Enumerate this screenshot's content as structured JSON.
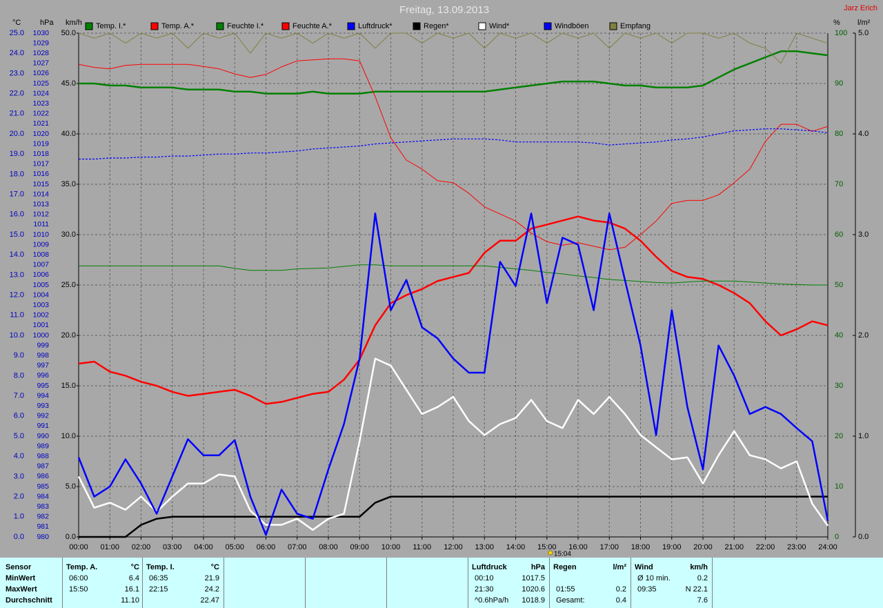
{
  "chart_data": {
    "type": "line",
    "title": "Freitag, 13.09.2013",
    "author": "Jarz Erich",
    "grid": true,
    "grid_axis": "kmh",
    "xlim": [
      0,
      24
    ],
    "xticks": [
      {
        "value": 0,
        "label": "00:00"
      },
      {
        "value": 1,
        "label": "01:00"
      },
      {
        "value": 2,
        "label": "02:00"
      },
      {
        "value": 3,
        "label": "03:00"
      },
      {
        "value": 4,
        "label": "04:00"
      },
      {
        "value": 5,
        "label": "05:00"
      },
      {
        "value": 6,
        "label": "06:00"
      },
      {
        "value": 7,
        "label": "07:00"
      },
      {
        "value": 8,
        "label": "08:00"
      },
      {
        "value": 9,
        "label": "09:00"
      },
      {
        "value": 10,
        "label": "10:00"
      },
      {
        "value": 11,
        "label": "11:00"
      },
      {
        "value": 12,
        "label": "12:00"
      },
      {
        "value": 13,
        "label": "13:00"
      },
      {
        "value": 14,
        "label": "14:00"
      },
      {
        "value": 15,
        "label": "15:00"
      },
      {
        "value": 16,
        "label": "16:00"
      },
      {
        "value": 17,
        "label": "17:00"
      },
      {
        "value": 18,
        "label": "18:00"
      },
      {
        "value": 19,
        "label": "19:00"
      },
      {
        "value": 20,
        "label": "20:00"
      },
      {
        "value": 21,
        "label": "21:00"
      },
      {
        "value": 22,
        "label": "22:00"
      },
      {
        "value": 23,
        "label": "23:00"
      },
      {
        "value": 24,
        "label": "24:00"
      }
    ],
    "x": [
      0,
      0.5,
      1,
      1.5,
      2,
      2.5,
      3,
      3.5,
      4,
      4.5,
      5,
      5.5,
      6,
      6.5,
      7,
      7.5,
      8,
      8.5,
      9,
      9.5,
      10,
      10.5,
      11,
      11.5,
      12,
      12.5,
      13,
      13.5,
      14,
      14.5,
      15,
      15.5,
      16,
      16.5,
      17,
      17.5,
      18,
      18.5,
      19,
      19.5,
      20,
      20.5,
      21,
      21.5,
      22,
      22.5,
      23,
      23.5,
      24
    ],
    "axes": {
      "temp": {
        "label": "°C",
        "lim": [
          0,
          25
        ],
        "ticks": [
          {
            "value": 0,
            "label": "0.0"
          },
          {
            "value": 1,
            "label": "1.0"
          },
          {
            "value": 2,
            "label": "2.0"
          },
          {
            "value": 3,
            "label": "3.0"
          },
          {
            "value": 4,
            "label": "4.0"
          },
          {
            "value": 5,
            "label": "5.0"
          },
          {
            "value": 6,
            "label": "6.0"
          },
          {
            "value": 7,
            "label": "7.0"
          },
          {
            "value": 8,
            "label": "8.0"
          },
          {
            "value": 9,
            "label": "9.0"
          },
          {
            "value": 10,
            "label": "10.0"
          },
          {
            "value": 11,
            "label": "11.0"
          },
          {
            "value": 12,
            "label": "12.0"
          },
          {
            "value": 13,
            "label": "13.0"
          },
          {
            "value": 14,
            "label": "14.0"
          },
          {
            "value": 15,
            "label": "15.0"
          },
          {
            "value": 16,
            "label": "16.0"
          },
          {
            "value": 17,
            "label": "17.0"
          },
          {
            "value": 18,
            "label": "18.0"
          },
          {
            "value": 19,
            "label": "19.0"
          },
          {
            "value": 20,
            "label": "20.0"
          },
          {
            "value": 21,
            "label": "21.0"
          },
          {
            "value": 22,
            "label": "22.0"
          },
          {
            "value": 23,
            "label": "23.0"
          },
          {
            "value": 24,
            "label": "24.0"
          },
          {
            "value": 25,
            "label": "25.0"
          }
        ]
      },
      "hpa": {
        "label": "hPa",
        "lim": [
          980,
          1030
        ],
        "ticks": [
          980,
          981,
          982,
          983,
          984,
          985,
          986,
          987,
          988,
          989,
          990,
          991,
          992,
          993,
          994,
          995,
          996,
          997,
          998,
          999,
          1000,
          1001,
          1002,
          1003,
          1004,
          1005,
          1006,
          1007,
          1008,
          1009,
          1010,
          1011,
          1012,
          1013,
          1014,
          1015,
          1016,
          1017,
          1018,
          1019,
          1020,
          1021,
          1022,
          1023,
          1024,
          1025,
          1026,
          1027,
          1028,
          1029,
          1030
        ]
      },
      "kmh": {
        "label": "km/h",
        "lim": [
          0,
          50
        ],
        "ticks": [
          {
            "value": 0,
            "label": "0.0"
          },
          {
            "value": 5,
            "label": "5.0"
          },
          {
            "value": 10,
            "label": "10.0"
          },
          {
            "value": 15,
            "label": "15.0"
          },
          {
            "value": 20,
            "label": "20.0"
          },
          {
            "value": 25,
            "label": "25.0"
          },
          {
            "value": 30,
            "label": "30.0"
          },
          {
            "value": 35,
            "label": "35.0"
          },
          {
            "value": 40,
            "label": "40.0"
          },
          {
            "value": 45,
            "label": "45.0"
          },
          {
            "value": 50,
            "label": "50.0"
          }
        ]
      },
      "pct": {
        "label": "%",
        "lim": [
          0,
          100
        ],
        "ticks": [
          0,
          10,
          20,
          30,
          40,
          50,
          60,
          70,
          80,
          90,
          100
        ]
      },
      "rain": {
        "label": "l/m²",
        "lim": [
          0,
          5
        ],
        "ticks": [
          {
            "value": 0,
            "label": "0.0"
          },
          {
            "value": 1,
            "label": "1.0"
          },
          {
            "value": 2,
            "label": "2.0"
          },
          {
            "value": 3,
            "label": "3.0"
          },
          {
            "value": 4,
            "label": "4.0"
          },
          {
            "value": 5,
            "label": "5.0"
          }
        ]
      }
    },
    "series": [
      {
        "name": "Temp. I.*",
        "color": "#008000",
        "axis": "temp",
        "style": "thick",
        "values": [
          22.5,
          22.5,
          22.4,
          22.4,
          22.3,
          22.3,
          22.3,
          22.2,
          22.2,
          22.2,
          22.1,
          22.1,
          22.0,
          22.0,
          22.0,
          22.1,
          22.0,
          22.0,
          22.0,
          22.1,
          22.1,
          22.1,
          22.1,
          22.1,
          22.1,
          22.1,
          22.1,
          22.2,
          22.3,
          22.4,
          22.5,
          22.6,
          22.6,
          22.6,
          22.5,
          22.4,
          22.4,
          22.3,
          22.3,
          22.3,
          22.4,
          22.8,
          23.2,
          23.5,
          23.8,
          24.1,
          24.1,
          24.0,
          23.9
        ]
      },
      {
        "name": "Temp. A.*",
        "color": "#ff0000",
        "axis": "temp",
        "style": "thick",
        "values": [
          8.6,
          8.7,
          8.2,
          8.0,
          7.7,
          7.5,
          7.2,
          7.0,
          7.1,
          7.2,
          7.3,
          7.0,
          6.6,
          6.7,
          6.9,
          7.1,
          7.2,
          7.8,
          8.8,
          10.5,
          11.6,
          12.0,
          12.3,
          12.7,
          12.9,
          13.1,
          14.1,
          14.7,
          14.7,
          15.3,
          15.5,
          15.7,
          15.9,
          15.7,
          15.6,
          15.3,
          14.7,
          13.9,
          13.2,
          12.9,
          12.8,
          12.5,
          12.1,
          11.6,
          10.7,
          10.0,
          10.3,
          10.7,
          10.5
        ]
      },
      {
        "name": "Feuchte I.*",
        "color": "#008000",
        "axis": "pct",
        "style": "thin",
        "values": [
          53.8,
          53.8,
          53.8,
          53.8,
          53.8,
          53.8,
          53.8,
          53.8,
          53.8,
          53.8,
          53.3,
          52.9,
          52.9,
          52.9,
          53.2,
          53.3,
          53.4,
          53.7,
          54.0,
          54.0,
          53.8,
          53.8,
          53.8,
          53.8,
          53.8,
          53.8,
          53.8,
          53.5,
          53.2,
          52.9,
          52.5,
          52.2,
          51.8,
          51.5,
          51.1,
          50.9,
          50.7,
          50.5,
          50.4,
          50.6,
          50.8,
          50.8,
          50.8,
          50.6,
          50.4,
          50.2,
          50.1,
          50.0,
          50.0
        ]
      },
      {
        "name": "Feuchte A.*",
        "color": "#ff0000",
        "axis": "pct",
        "style": "thin",
        "values": [
          93.8,
          93.2,
          92.9,
          93.6,
          93.8,
          93.8,
          93.8,
          93.8,
          93.4,
          92.9,
          91.9,
          91.2,
          91.8,
          93.3,
          94.5,
          94.7,
          94.9,
          94.9,
          94.5,
          87.4,
          79.2,
          74.8,
          73.0,
          70.7,
          70.3,
          68.2,
          65.5,
          64.1,
          62.7,
          60.3,
          58.6,
          57.9,
          58.4,
          57.7,
          57.0,
          57.5,
          60.0,
          62.7,
          66.2,
          66.8,
          66.8,
          67.9,
          70.3,
          73.0,
          78.5,
          81.9,
          81.9,
          80.5,
          81.5
        ]
      },
      {
        "name": "Luftdruck*",
        "color": "#0000ff",
        "axis": "hpa",
        "style": "dashed",
        "values": [
          1017.5,
          1017.5,
          1017.6,
          1017.6,
          1017.7,
          1017.7,
          1017.8,
          1017.8,
          1017.9,
          1018.0,
          1018.0,
          1018.1,
          1018.1,
          1018.2,
          1018.3,
          1018.5,
          1018.6,
          1018.7,
          1018.8,
          1019.0,
          1019.1,
          1019.2,
          1019.3,
          1019.4,
          1019.5,
          1019.5,
          1019.5,
          1019.4,
          1019.2,
          1019.2,
          1019.2,
          1019.2,
          1019.2,
          1019.1,
          1018.9,
          1019.0,
          1019.1,
          1019.2,
          1019.4,
          1019.5,
          1019.7,
          1020.0,
          1020.3,
          1020.4,
          1020.5,
          1020.5,
          1020.4,
          1020.3,
          1020.1
        ]
      },
      {
        "name": "Regen*",
        "color": "#000000",
        "axis": "rain",
        "style": "thick",
        "values": [
          0,
          0,
          0,
          0,
          0.12,
          0.18,
          0.2,
          0.2,
          0.2,
          0.2,
          0.2,
          0.2,
          0.2,
          0.2,
          0.2,
          0.2,
          0.2,
          0.2,
          0.2,
          0.34,
          0.4,
          0.4,
          0.4,
          0.4,
          0.4,
          0.4,
          0.4,
          0.4,
          0.4,
          0.4,
          0.4,
          0.4,
          0.4,
          0.4,
          0.4,
          0.4,
          0.4,
          0.4,
          0.4,
          0.4,
          0.4,
          0.4,
          0.4,
          0.4,
          0.4,
          0.4,
          0.4,
          0.4,
          0.4
        ]
      },
      {
        "name": "Wind*",
        "color": "#ffffff",
        "axis": "kmh",
        "style": "thick",
        "values": [
          6.0,
          2.9,
          3.4,
          2.7,
          4.0,
          2.5,
          4.0,
          5.3,
          5.3,
          6.2,
          6.0,
          2.6,
          1.2,
          1.2,
          1.8,
          0.7,
          1.8,
          2.3,
          9.5,
          17.7,
          17.0,
          14.6,
          12.2,
          12.9,
          13.9,
          11.5,
          10.1,
          11.2,
          11.8,
          13.6,
          11.5,
          10.8,
          13.6,
          12.2,
          13.9,
          12.2,
          10.1,
          8.9,
          7.7,
          7.9,
          5.3,
          8.1,
          10.5,
          8.1,
          7.7,
          6.8,
          7.5,
          3.3,
          1.1
        ]
      },
      {
        "name": "Windböen",
        "color": "#0000ff",
        "axis": "kmh",
        "style": "thick",
        "values": [
          7.9,
          4.0,
          5.0,
          7.7,
          5.3,
          2.3,
          6.0,
          9.7,
          8.1,
          8.1,
          9.6,
          4.0,
          0.2,
          4.7,
          2.3,
          1.8,
          6.7,
          11.2,
          17.7,
          32.1,
          22.5,
          25.5,
          20.8,
          19.7,
          17.7,
          16.3,
          16.3,
          27.3,
          24.9,
          32.1,
          23.2,
          29.7,
          29.0,
          22.5,
          32.1,
          25.5,
          19.0,
          10.1,
          22.5,
          12.9,
          6.7,
          19.0,
          16.0,
          12.2,
          12.9,
          12.2,
          10.8,
          9.5,
          1.6
        ]
      },
      {
        "name": "Empfang",
        "color": "#808040",
        "axis": "pct",
        "style": "thin",
        "values": [
          100,
          99,
          100,
          98,
          100,
          99,
          100,
          97,
          100,
          99,
          100,
          96,
          100,
          99,
          100,
          98,
          100,
          99,
          100,
          97,
          100,
          100,
          98,
          100,
          99,
          100,
          97,
          100,
          99,
          100,
          98,
          100,
          99,
          100,
          97,
          100,
          99,
          100,
          98,
          100,
          100,
          99,
          100,
          98,
          97,
          94,
          100,
          99,
          98
        ]
      }
    ],
    "annotations": [
      {
        "x": 15.07,
        "text": "15:04"
      }
    ]
  },
  "table": {
    "row_labels": [
      "Sensor",
      "MinWert",
      "MaxWert",
      "Durchschnitt"
    ],
    "panels": [
      {
        "name": "Temp. A.",
        "unit": "°C",
        "rows": [
          {
            "time": "06:00",
            "value": "6.4"
          },
          {
            "time": "15:50",
            "value": "16.1"
          },
          {
            "value": "11.10"
          }
        ]
      },
      {
        "name": "Temp. I.",
        "unit": "°C",
        "rows": [
          {
            "time": "06:35",
            "value": "21.9"
          },
          {
            "time": "22:15",
            "value": "24.2"
          },
          {
            "value": "22.47"
          }
        ]
      },
      {
        "name": "Luftdruck",
        "unit": "hPa",
        "rows": [
          {
            "time": "00:10",
            "value": "1017.5"
          },
          {
            "time": "21:30",
            "value": "1020.6"
          },
          {
            "time": "^0.6hPa/h",
            "value": "1018.9"
          }
        ]
      },
      {
        "name": "Regen",
        "unit": "l/m²",
        "rows": [
          null,
          {
            "time": "01:55",
            "value": "0.2"
          },
          {
            "time": "Gesamt:",
            "value": "0.4"
          }
        ]
      },
      {
        "name": "Wind",
        "unit": "km/h",
        "rows": [
          {
            "time": "Ø 10 min.",
            "value": "0.2"
          },
          {
            "time": "09:35",
            "value": "N 22.1"
          },
          {
            "value": "7.6"
          }
        ]
      }
    ]
  }
}
